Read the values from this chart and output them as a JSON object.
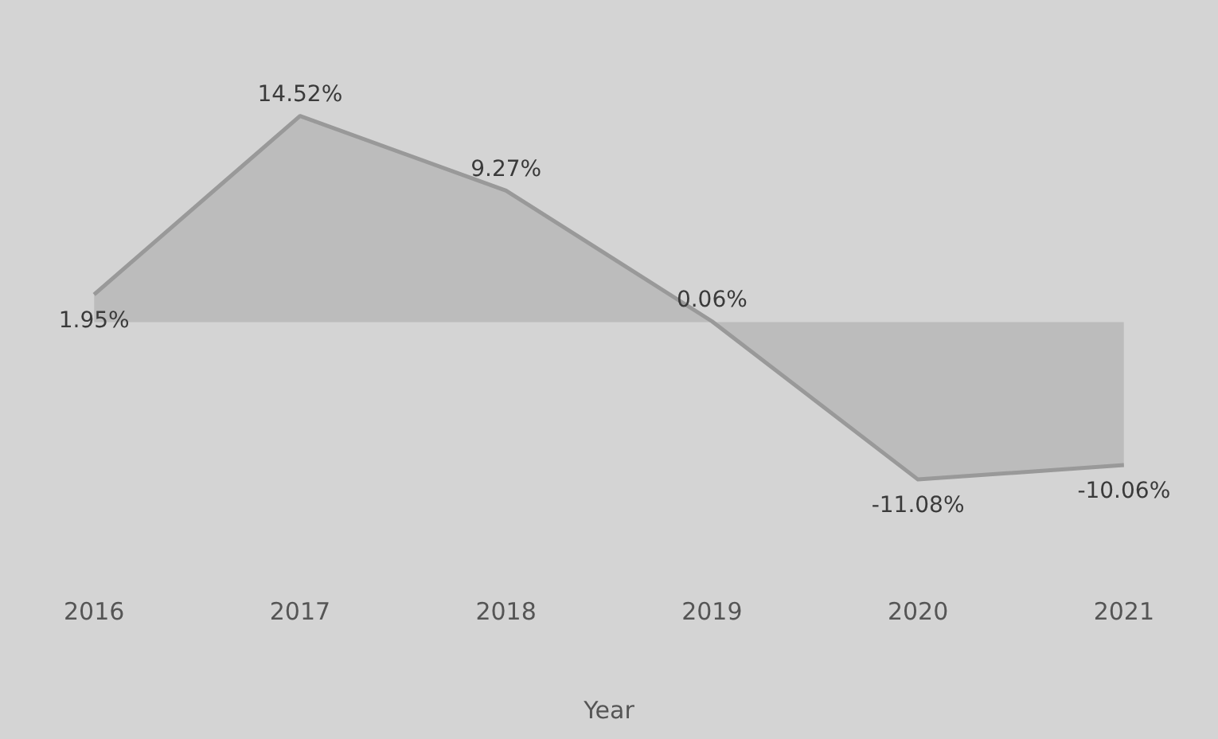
{
  "chart_data": {
    "type": "area",
    "xlabel": "Year",
    "categories": [
      "2016",
      "2017",
      "2018",
      "2019",
      "2020",
      "2021"
    ],
    "series": [
      {
        "color": "#999999",
        "values": [
          1.95,
          14.52,
          9.27,
          0.06,
          -11.08,
          -10.06
        ],
        "value_labels": [
          "1.95%",
          "14.52%",
          "9.27%",
          "0.06%",
          "-11.08%",
          "-10.06%"
        ]
      }
    ],
    "grid": false,
    "legend": false,
    "marker": "none",
    "line_style": "solid"
  }
}
